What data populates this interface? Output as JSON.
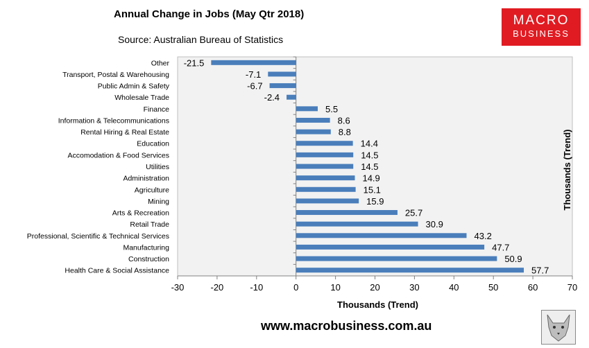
{
  "header": {
    "title": "Annual Change in Jobs (May Qtr 2018)",
    "source": "Source: Australian Bureau of Statistics"
  },
  "logo": {
    "line1": "MACRO",
    "line2": "BUSINESS",
    "color": "#e11b22"
  },
  "footer": {
    "website": "www.macrobusiness.com.au"
  },
  "chart_data": {
    "type": "bar",
    "orientation": "horizontal",
    "title": "Annual Change in Jobs (May Qtr 2018)",
    "xlabel": "Thousands (Trend)",
    "y2label": "Thousands (Trend)",
    "xlim": [
      -30,
      70
    ],
    "xticks": [
      -30,
      -20,
      -10,
      0,
      10,
      20,
      30,
      40,
      50,
      60,
      70
    ],
    "bar_color": "#4a7ebb",
    "plot_bg": "#f2f2f2",
    "categories": [
      "Other",
      "Transport, Postal & Warehousing",
      "Public Admin & Safety",
      "Wholesale Trade",
      "Finance",
      "Information & Telecommunications",
      "Rental Hiring & Real Estate",
      "Education",
      "Accomodation & Food Services",
      "Utilities",
      "Administration",
      "Agriculture",
      "Mining",
      "Arts & Recreation",
      "Retail Trade",
      "Professional, Scientific & Technical Services",
      "Manufacturing",
      "Construction",
      "Health Care & Social Assistance"
    ],
    "values": [
      -21.5,
      -7.1,
      -6.7,
      -2.4,
      5.5,
      8.6,
      8.8,
      14.4,
      14.5,
      14.5,
      14.9,
      15.1,
      15.9,
      25.7,
      30.9,
      43.2,
      47.7,
      50.9,
      57.7
    ],
    "value_labels": [
      "-21.5",
      "-7.1",
      "-6.7",
      "-2.4",
      "5.5",
      "8.6",
      "8.8",
      "14.4",
      "14.5",
      "14.5",
      "14.9",
      "15.1",
      "15.9",
      "25.7",
      "30.9",
      "43.2",
      "47.7",
      "50.9",
      "57.7"
    ]
  }
}
